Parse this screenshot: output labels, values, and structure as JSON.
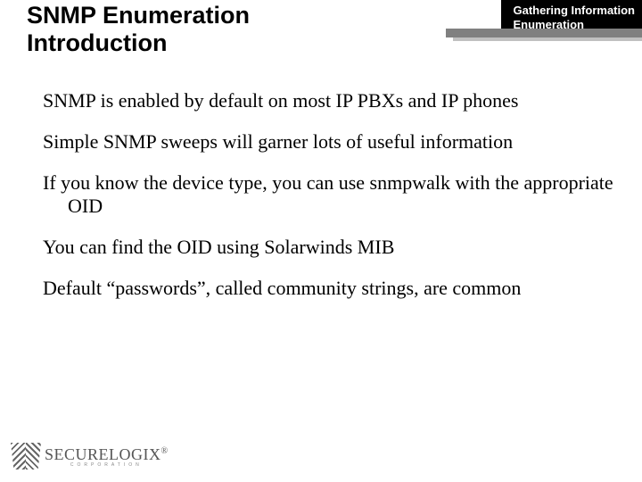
{
  "title_fontsize": 27,
  "tab_fontsize": 13,
  "body_fontsize": 22,
  "logo_fontsize": 18,
  "colors": {
    "bg": "#ffffff",
    "text": "#000000",
    "tab_bg": "#000000",
    "tab_text": "#ffffff",
    "step1": "#808080",
    "step2": "#c0c0c0",
    "logo": "#555555"
  },
  "header": {
    "title_line1": "SNMP Enumeration",
    "title_line2": "Introduction",
    "tab_line1": "Gathering Information",
    "tab_line2": "Enumeration"
  },
  "bullets": [
    "SNMP is enabled by default on most IP PBXs and IP phones",
    "Simple SNMP sweeps will garner lots of useful information",
    "If you know the device type, you can use snmpwalk with the appropriate OID",
    "You can find the OID using Solarwinds MIB",
    "Default “passwords”, called community strings, are common"
  ],
  "logo": {
    "text_s": "S",
    "text_rest": "ECURELOGIX",
    "reg": "®",
    "sub": "CORPORATION"
  }
}
